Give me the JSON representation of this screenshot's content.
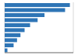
{
  "chart_data": {
    "type": "bar",
    "orientation": "horizontal",
    "values": [
      9500,
      8800,
      5800,
      4800,
      3700,
      2900,
      2300,
      1800,
      1300,
      400
    ],
    "color": "#2e75b6",
    "xlim": [
      0,
      10000
    ],
    "xticks": [
      2500,
      5000,
      7500,
      10000
    ],
    "grid": true,
    "tick_labels": false
  }
}
